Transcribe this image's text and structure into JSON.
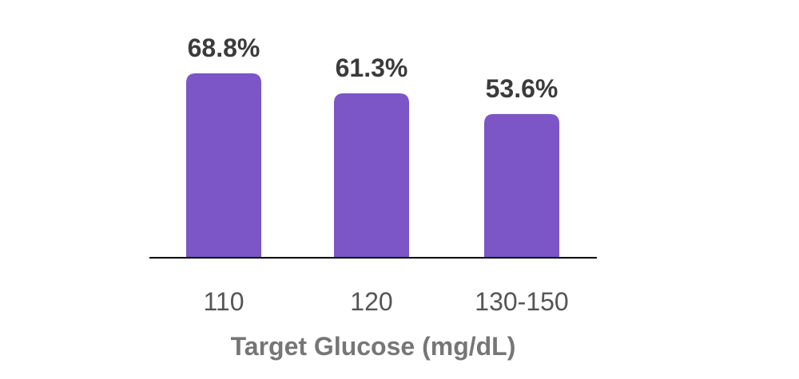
{
  "chart_data": {
    "type": "bar",
    "categories": [
      "110",
      "120",
      "130-150"
    ],
    "values": [
      68.8,
      61.3,
      53.6
    ],
    "data_labels": [
      "68.8%",
      "61.3%",
      "53.6%"
    ],
    "title": "",
    "xlabel": "Target Glucose (mg/dL)",
    "ylabel": "",
    "ylim": [
      0,
      100
    ],
    "grid": false,
    "bar_color": "#7c55c7",
    "axis_color": "#000000"
  }
}
